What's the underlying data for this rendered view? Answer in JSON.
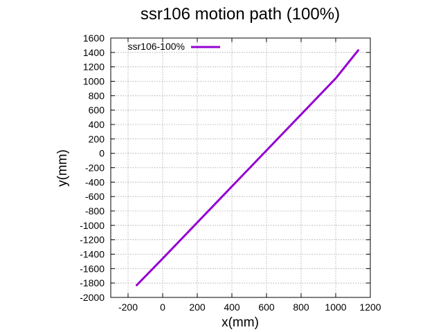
{
  "chart_data": {
    "type": "line",
    "title": "ssr106 motion path (100%)",
    "xlabel": "x(mm)",
    "ylabel": "y(mm)",
    "xlim": [
      -300,
      1200
    ],
    "ylim": [
      -2000,
      1600
    ],
    "xticks": [
      -200,
      0,
      200,
      400,
      600,
      800,
      1000,
      1200
    ],
    "yticks": [
      -2000,
      -1800,
      -1600,
      -1400,
      -1200,
      -1000,
      -800,
      -600,
      -400,
      -200,
      0,
      200,
      400,
      600,
      800,
      1000,
      1200,
      1400,
      1600
    ],
    "grid": true,
    "legend_position": "top-left",
    "series": [
      {
        "name": "ssr106-100%",
        "color": "#9400d3",
        "x": [
          -150,
          0,
          200,
          400,
          600,
          800,
          1000,
          1130
        ],
        "y": [
          -1830,
          -1460,
          -960,
          -460,
          40,
          540,
          1040,
          1430
        ]
      }
    ]
  }
}
